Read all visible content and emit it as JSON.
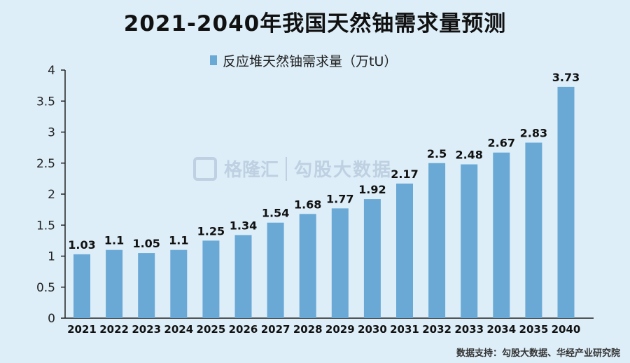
{
  "chart_data": {
    "type": "bar",
    "title": "2021-2040年我国天然铀需求量预测",
    "legend": [
      "反应堆天然铀需求量（万tU）"
    ],
    "legend_position": "top",
    "categories": [
      "2021",
      "2022",
      "2023",
      "2024",
      "2025",
      "2026",
      "2027",
      "2028",
      "2029",
      "2030",
      "2031",
      "2032",
      "2033",
      "2034",
      "2035",
      "2040"
    ],
    "series": [
      {
        "name": "反应堆天然铀需求量（万tU）",
        "values": [
          1.03,
          1.1,
          1.05,
          1.1,
          1.25,
          1.34,
          1.54,
          1.68,
          1.77,
          1.92,
          2.17,
          2.5,
          2.48,
          2.67,
          2.83,
          3.73
        ],
        "labels": [
          "1.03",
          "1.1",
          "1.05",
          "1.1",
          "1.25",
          "1.34",
          "1.54",
          "1.68",
          "1.77",
          "1.92",
          "2.17",
          "2.5",
          "2.48",
          "2.67",
          "2.83",
          "3.73"
        ],
        "color": "#6aa9d5"
      }
    ],
    "ylim": [
      0,
      4
    ],
    "yticks": [
      "0",
      "0.5",
      "1",
      "1.5",
      "2",
      "2.5",
      "3",
      "3.5",
      "4"
    ],
    "grid": false
  },
  "source_note": "数据支持：勾股大数据、华经产业研究院",
  "watermark": {
    "brand": "格隆汇",
    "brand2": "勾股大数据"
  },
  "colors": {
    "background": "#ddeef8",
    "bar": "#6aa9d5",
    "axis": "#222222"
  }
}
